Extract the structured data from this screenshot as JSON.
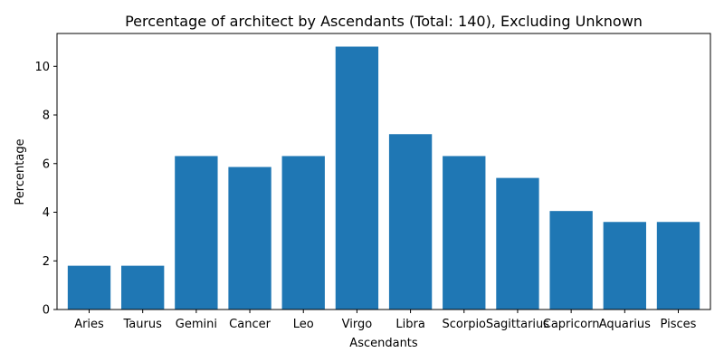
{
  "chart_data": {
    "type": "bar",
    "title": "Percentage of architect by Ascendants (Total: 140), Excluding Unknown",
    "xlabel": "Ascendants",
    "ylabel": "Percentage",
    "categories": [
      "Aries",
      "Taurus",
      "Gemini",
      "Cancer",
      "Leo",
      "Virgo",
      "Libra",
      "Scorpio",
      "Sagittarius",
      "Capricorn",
      "Aquarius",
      "Pisces"
    ],
    "values": [
      1.8,
      1.8,
      6.31,
      5.86,
      6.31,
      10.81,
      7.21,
      6.31,
      5.41,
      4.05,
      3.6,
      3.6
    ],
    "yticks": [
      0,
      2,
      4,
      6,
      8,
      10
    ],
    "ylim": [
      0,
      11.35
    ],
    "bar_color": "#1f77b4",
    "grid": false,
    "legend": "none"
  }
}
